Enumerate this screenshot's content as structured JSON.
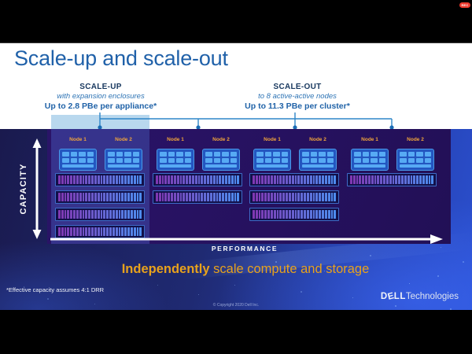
{
  "recording_badge": "REC",
  "title": "Scale-up and scale-out",
  "scale_up": {
    "heading": "SCALE-UP",
    "detail": "with expansion enclosures",
    "capacity": "Up to 2.8 PBe per appliance*"
  },
  "scale_out": {
    "heading": "SCALE-OUT",
    "detail": "to 8 active-active nodes",
    "capacity": "Up to 11.3 PBe per cluster*"
  },
  "diagram": {
    "y_axis_label": "CAPACITY",
    "x_axis_label": "PERFORMANCE",
    "clusters": [
      {
        "node_labels": [
          "Node 1",
          "Node 2"
        ],
        "enclosure_count": 4
      },
      {
        "node_labels": [
          "Node 1",
          "Node 2"
        ],
        "enclosure_count": 2
      },
      {
        "node_labels": [
          "Node 1",
          "Node 2"
        ],
        "enclosure_count": 3
      },
      {
        "node_labels": [
          "Node 1",
          "Node 2"
        ],
        "enclosure_count": 1
      }
    ],
    "drive_bars_per_enclosure": 28
  },
  "tagline": {
    "emphasis": "Independently",
    "rest": " scale compute and storage"
  },
  "footnote": "*Effective capacity assumes 4:1 DRR",
  "copyright": "© Copyright 2020 Dell Inc.",
  "brand": {
    "dell_d": "D",
    "dell_e": "E",
    "dell_ll": "LL",
    "suffix": "Technologies"
  },
  "colors": {
    "title_blue": "#2061a9",
    "heading_navy": "#17375e",
    "sub_blue": "#2e74b5",
    "node_label_yellow": "#f0a43c",
    "tagline_orange": "#e8a21c",
    "bracket_blue": "#2d85c8",
    "highlight_light_blue": "#b9d8ee",
    "box_indigo": "#271160",
    "node_fill": "#2356c0",
    "node_chip": "#57aaf4",
    "enclosure_bg": "#12104a",
    "enclosure_border": "#3e6cc8",
    "drive_gradient_start": "#8038b2",
    "drive_gradient_end": "#4e8cee",
    "rec_red": "#ee3a2e"
  }
}
